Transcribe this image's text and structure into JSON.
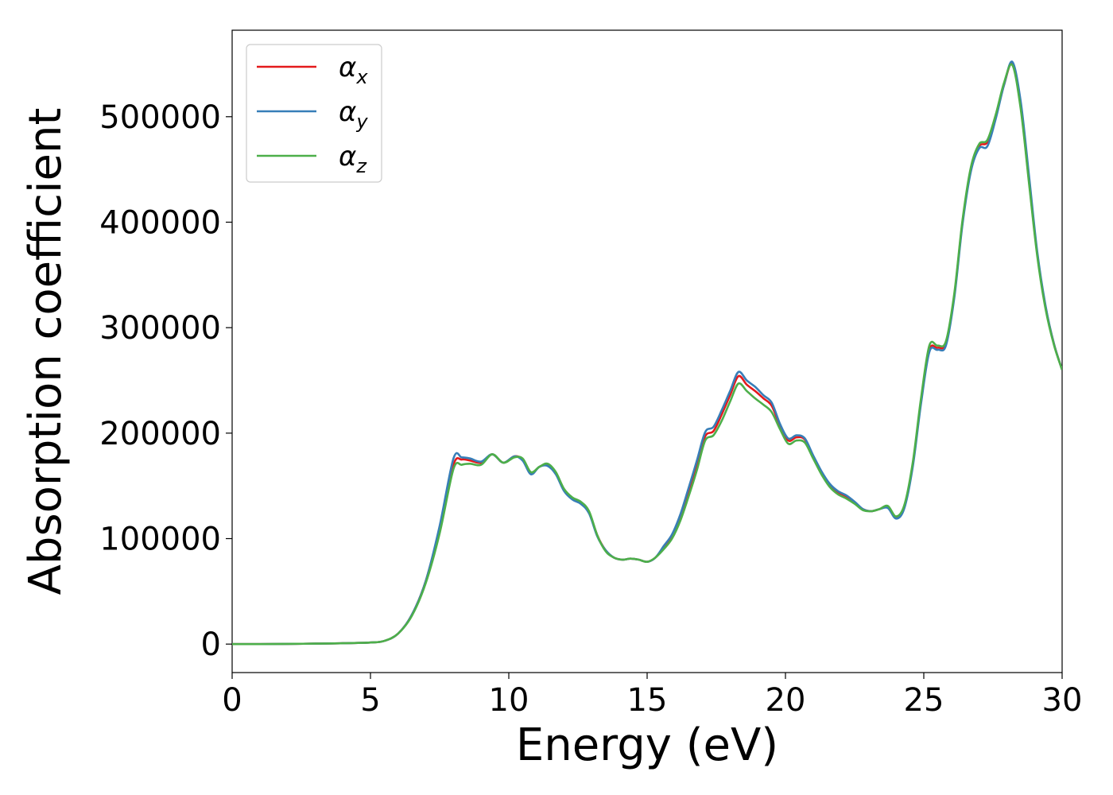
{
  "chart_data": {
    "type": "line",
    "title": "",
    "xlabel": "Energy (eV)",
    "ylabel": "Absorption coefficient",
    "xlim": [
      0,
      30
    ],
    "ylim": [
      -27000,
      582000
    ],
    "x_ticks": [
      0,
      5,
      10,
      15,
      20,
      25,
      30
    ],
    "x_tick_labels": [
      "0",
      "5",
      "10",
      "15",
      "20",
      "25",
      "30"
    ],
    "y_ticks": [
      0,
      100000,
      200000,
      300000,
      400000,
      500000
    ],
    "y_tick_labels": [
      "0",
      "100000",
      "200000",
      "300000",
      "400000",
      "500000"
    ],
    "grid": false,
    "legend_position": "top-left",
    "x": [
      0,
      1,
      2,
      3,
      4,
      5,
      5.5,
      6,
      6.5,
      7,
      7.5,
      8,
      8.3,
      8.6,
      9,
      9.4,
      9.8,
      10.2,
      10.5,
      10.8,
      11.1,
      11.4,
      11.7,
      12,
      12.3,
      12.6,
      12.9,
      13.2,
      13.5,
      13.8,
      14.1,
      14.4,
      14.7,
      15,
      15.3,
      15.6,
      15.9,
      16.2,
      16.5,
      16.8,
      17.1,
      17.4,
      17.7,
      18,
      18.3,
      18.6,
      18.9,
      19.2,
      19.5,
      19.8,
      20.1,
      20.4,
      20.7,
      21,
      21.3,
      21.6,
      21.9,
      22.2,
      22.5,
      22.8,
      23.1,
      23.4,
      23.7,
      24,
      24.3,
      24.6,
      24.9,
      25.2,
      25.5,
      25.8,
      26.1,
      26.4,
      26.7,
      27,
      27.3,
      27.6,
      27.9,
      28.2,
      28.5,
      28.8,
      29.1,
      29.4,
      29.7,
      30
    ],
    "series": [
      {
        "name": "α",
        "subscript": "x",
        "color": "#e41a1c",
        "values": [
          0,
          0,
          200,
          400,
          800,
          1500,
          3000,
          10000,
          28000,
          60000,
          110000,
          170000,
          175000,
          174000,
          172000,
          180000,
          172000,
          178000,
          175000,
          162000,
          168000,
          170000,
          162000,
          146000,
          138000,
          134000,
          125000,
          103000,
          89000,
          82000,
          80000,
          81000,
          80000,
          78000,
          82000,
          92000,
          102000,
          120000,
          145000,
          170000,
          197000,
          202000,
          218000,
          236000,
          254000,
          246000,
          240000,
          233000,
          226000,
          207000,
          193000,
          196000,
          194000,
          178000,
          163000,
          151000,
          144000,
          140000,
          134000,
          128000,
          126000,
          128000,
          130000,
          120000,
          130000,
          170000,
          230000,
          279000,
          281000,
          285000,
          330000,
          400000,
          450000,
          472000,
          476000,
          500000,
          530000,
          550000,
          510000,
          440000,
          370000,
          320000,
          285000,
          260000
        ]
      },
      {
        "name": "α",
        "subscript": "y",
        "color": "#377eb8",
        "values": [
          0,
          0,
          200,
          400,
          800,
          1500,
          3000,
          10000,
          28000,
          60000,
          112000,
          176000,
          177000,
          176000,
          173000,
          180000,
          172000,
          178000,
          174000,
          161000,
          168000,
          169000,
          161000,
          145000,
          137000,
          133000,
          124000,
          102000,
          89000,
          82000,
          80000,
          81000,
          80000,
          78000,
          82000,
          93000,
          104000,
          123000,
          148000,
          174000,
          201000,
          206000,
          222000,
          240000,
          258000,
          250000,
          244000,
          236000,
          229000,
          209000,
          195000,
          198000,
          195000,
          179000,
          164000,
          152000,
          145000,
          141000,
          135000,
          128000,
          126000,
          128000,
          129000,
          119000,
          129000,
          168000,
          228000,
          277000,
          279000,
          283000,
          328000,
          398000,
          448000,
          470000,
          472000,
          498000,
          530000,
          552000,
          515000,
          445000,
          372000,
          321000,
          285000,
          260000
        ]
      },
      {
        "name": "α",
        "subscript": "z",
        "color": "#4daf4a",
        "values": [
          0,
          0,
          200,
          400,
          800,
          1500,
          3000,
          10000,
          27000,
          58000,
          105000,
          166000,
          170000,
          171000,
          170000,
          180000,
          172000,
          177000,
          176000,
          163000,
          168000,
          171000,
          163000,
          147000,
          139000,
          135000,
          126000,
          103000,
          88000,
          82000,
          80000,
          81000,
          80000,
          78000,
          82000,
          90000,
          100000,
          117000,
          140000,
          165000,
          193000,
          198000,
          212000,
          230000,
          247000,
          240000,
          233000,
          227000,
          220000,
          204000,
          190000,
          193000,
          191000,
          176000,
          161000,
          149000,
          142000,
          138000,
          133000,
          127000,
          126000,
          128000,
          131000,
          121000,
          132000,
          172000,
          233000,
          283000,
          283000,
          287000,
          332000,
          402000,
          452000,
          474000,
          478000,
          502000,
          532000,
          549000,
          508000,
          438000,
          368000,
          318000,
          284000,
          260000
        ]
      }
    ]
  }
}
